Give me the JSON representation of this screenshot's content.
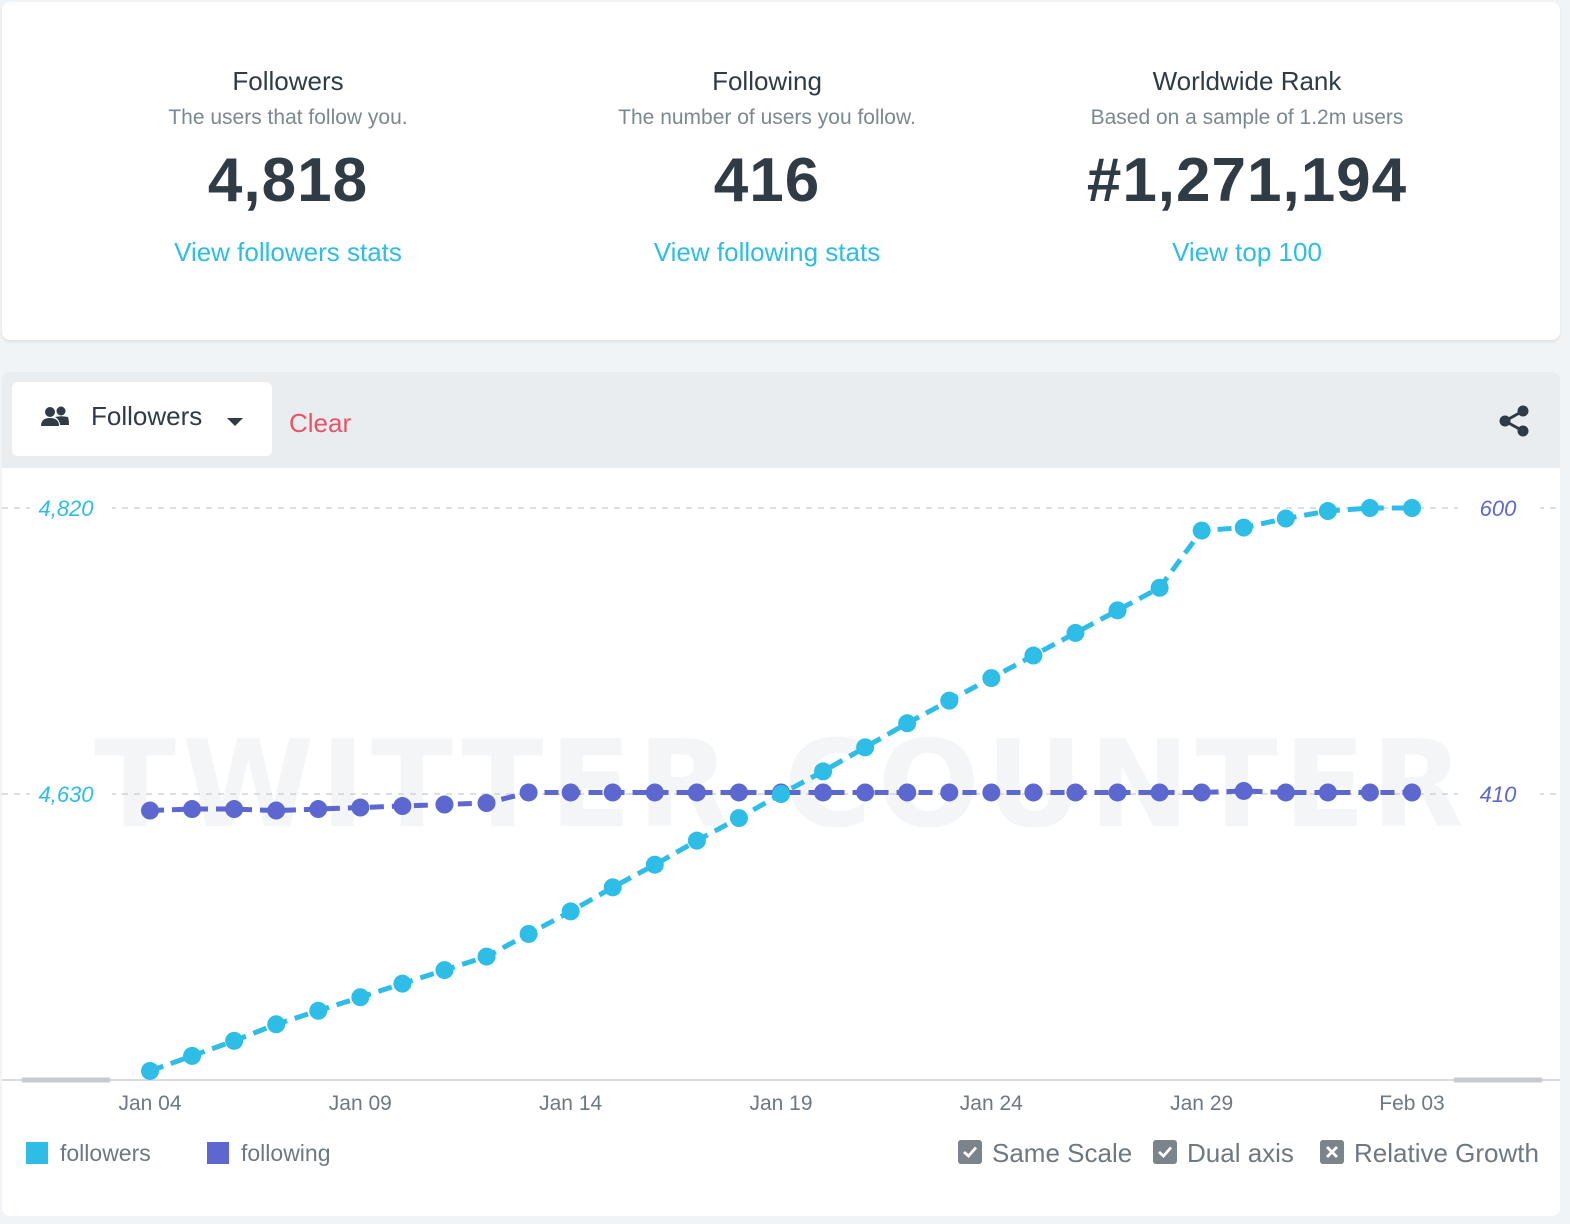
{
  "stats": [
    {
      "title": "Followers",
      "subtitle": "The users that follow you.",
      "value": "4,818",
      "link": "View followers stats"
    },
    {
      "title": "Following",
      "subtitle": "The number of users you follow.",
      "value": "416",
      "link": "View following stats"
    },
    {
      "title": "Worldwide Rank",
      "subtitle": "Based on a sample of 1.2m users",
      "value": "#1,271,194",
      "link": "View top 100"
    }
  ],
  "toolbar": {
    "dropdown_label": "Followers",
    "dropdown_icon": "users-icon",
    "clear_label": "Clear",
    "share_icon": "share-icon"
  },
  "chart_data": {
    "type": "line",
    "x": [
      "Jan 04",
      "Jan 05",
      "Jan 06",
      "Jan 07",
      "Jan 08",
      "Jan 09",
      "Jan 10",
      "Jan 11",
      "Jan 12",
      "Jan 13",
      "Jan 14",
      "Jan 15",
      "Jan 16",
      "Jan 17",
      "Jan 18",
      "Jan 19",
      "Jan 20",
      "Jan 21",
      "Jan 22",
      "Jan 23",
      "Jan 24",
      "Jan 25",
      "Jan 26",
      "Jan 27",
      "Jan 28",
      "Jan 29",
      "Jan 30",
      "Jan 31",
      "Feb 01",
      "Feb 02",
      "Feb 03"
    ],
    "x_tick_labels": [
      "Jan 04",
      "Jan 09",
      "Jan 14",
      "Jan 19",
      "Jan 24",
      "Jan 29",
      "Feb 03"
    ],
    "series": [
      {
        "name": "followers",
        "axis": "left",
        "color": "#2dbde6",
        "values": [
          4446,
          4456,
          4466,
          4477,
          4486,
          4495,
          4504,
          4513,
          4522,
          4537,
          4552,
          4568,
          4583,
          4599,
          4614,
          4630,
          4645,
          4661,
          4677,
          4692,
          4707,
          4722,
          4737,
          4752,
          4767,
          4805,
          4807,
          4813,
          4818,
          4820,
          4820
        ]
      },
      {
        "name": "following",
        "axis": "right",
        "color": "#5c68cf",
        "values": [
          399,
          400,
          400,
          399,
          400,
          401,
          402,
          403,
          404,
          411,
          411,
          411,
          411,
          411,
          411,
          411,
          411,
          411,
          411,
          411,
          411,
          411,
          411,
          411,
          411,
          411,
          412,
          411,
          411,
          411,
          411
        ]
      }
    ],
    "left_axis": {
      "range": [
        4440,
        4820
      ],
      "tick_labels": [
        "4,820",
        "4,630"
      ],
      "ticks": [
        4820,
        4630
      ]
    },
    "right_axis": {
      "range": [
        220,
        600
      ],
      "tick_labels": [
        "600",
        "410"
      ],
      "ticks": [
        600,
        410
      ]
    },
    "grid": true,
    "legend": "bottom-left",
    "watermark": "TWITTER COUNTER"
  },
  "options": [
    {
      "label": "Same Scale",
      "state": "checked"
    },
    {
      "label": "Dual axis",
      "state": "checked"
    },
    {
      "label": "Relative Growth",
      "state": "crossed"
    }
  ]
}
